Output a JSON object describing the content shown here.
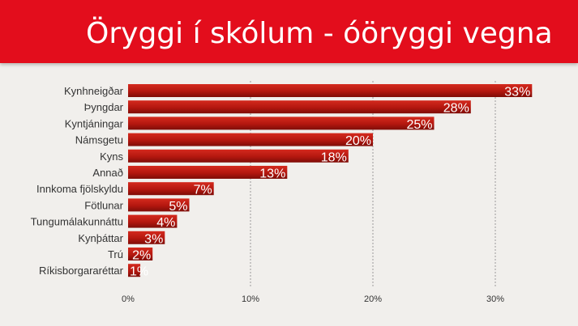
{
  "header": {
    "title": "Öryggi í skólum - óöryggi vegna"
  },
  "colors": {
    "header_bg": "#e30d1c",
    "bar_light": "#c9251a",
    "bar_dark": "#8a0f0a",
    "background": "#f1efec"
  },
  "chart_data": {
    "type": "bar",
    "orientation": "horizontal",
    "title": "Öryggi í skólum - óöryggi vegna",
    "categories": [
      "Kynhneigðar",
      "Þyngdar",
      "Kyntjáningar",
      "Námsgetu",
      "Kyns",
      "Annað",
      "Innkoma fjölskyldu",
      "Fötlunar",
      "Tungumálakunnáttu",
      "Kynþáttar",
      "Trú",
      "Ríkisborgararéttar"
    ],
    "values": [
      33,
      28,
      25,
      20,
      18,
      13,
      7,
      5,
      4,
      3,
      2,
      1
    ],
    "value_labels": [
      "33%",
      "28%",
      "25%",
      "20%",
      "18%",
      "13%",
      "7%",
      "5%",
      "4%",
      "3%",
      "2%",
      "1%"
    ],
    "xlim": [
      0,
      35
    ],
    "xticks": [
      0,
      10,
      20,
      30
    ],
    "xtick_labels": [
      "0%",
      "10%",
      "20%",
      "30%"
    ],
    "grid": "vertical dashed",
    "legend": "none"
  }
}
